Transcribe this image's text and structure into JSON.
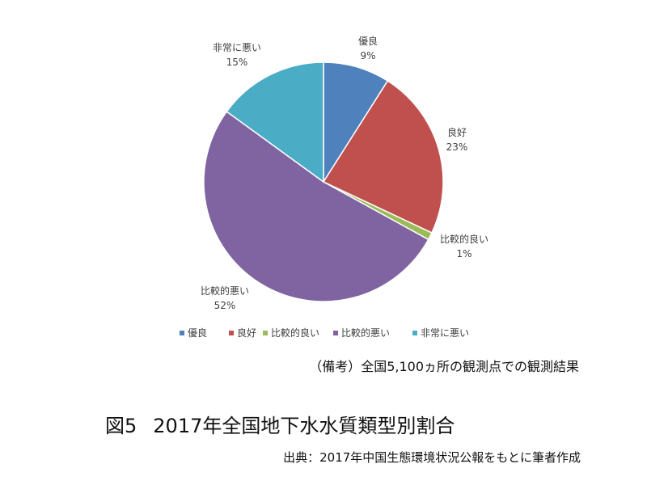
{
  "chart_data": {
    "type": "pie",
    "categories": [
      "優良",
      "良好",
      "比較的良い",
      "比較的悪い",
      "非常に悪い"
    ],
    "values": [
      9,
      23,
      1,
      52,
      15
    ],
    "data_labels": [
      "9%",
      "23%",
      "1%",
      "52%",
      "15%"
    ],
    "colors": [
      "#4F81BD",
      "#C0504D",
      "#9BBB59",
      "#8064A2",
      "#4BACC6"
    ],
    "legend_position": "bottom",
    "start_angle_deg": 0,
    "direction": "clockwise"
  },
  "note": "（備考）全国5,100ヵ所の観測点での観測結果",
  "figure": {
    "number": "図5",
    "title": "2017年全国地下水水質類型別割合"
  },
  "source": "出典：2017年中国生態環境状況公報をもとに筆者作成"
}
